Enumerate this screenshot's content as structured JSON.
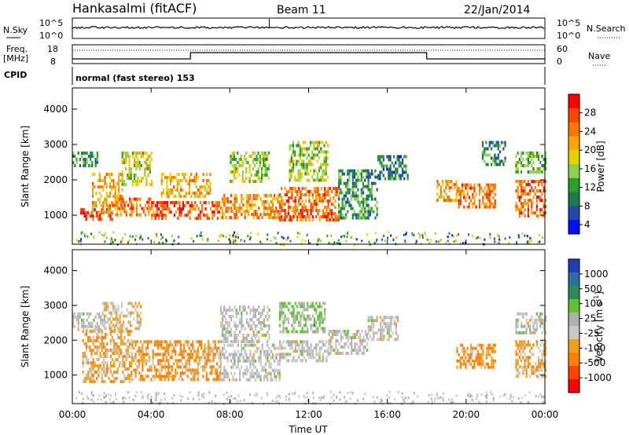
{
  "header": {
    "station": "Hankasalmi (fitACF)",
    "beam": "Beam 11",
    "date": "22/Jan/2014"
  },
  "nsky_panel": {
    "left_label": "N.Sky",
    "right_label": "N.Search",
    "left_ticks": [
      "10^5",
      "10^0"
    ],
    "right_ticks": [
      "10^5",
      "10^0"
    ]
  },
  "freq_panel": {
    "left_label_top": "Freq.",
    "left_label_bottom": "[MHz]",
    "left_ticks": [
      "18",
      "8"
    ],
    "right_ticks": [
      "60",
      "0"
    ],
    "right_label": "Nave"
  },
  "cpid_panel": {
    "label": "CPID",
    "text": "normal (fast stereo) 153"
  },
  "power_panel": {
    "ylabel": "Slant Range [km]",
    "yticks": [
      "4000",
      "3000",
      "2000",
      "1000"
    ],
    "colorbar_label": "Power [dB]",
    "colorbar_ticks": [
      "28",
      "24",
      "20",
      "16",
      "12",
      "8",
      "4"
    ],
    "colorbar_colors": [
      "#ff0000",
      "#ff4400",
      "#ff7700",
      "#ffa500",
      "#e8d000",
      "#8fd14f",
      "#2ca02c",
      "#1f7a4a",
      "#1f4aa8",
      "#0010ff"
    ]
  },
  "velocity_panel": {
    "ylabel": "Slant Range [km]",
    "yticks": [
      "4000",
      "3000",
      "2000",
      "1000"
    ],
    "colorbar_label": "Velocity [m s",
    "colorbar_label_sup": "-1",
    "colorbar_label_end": "]",
    "colorbar_ticks": [
      "1000",
      "500",
      "100",
      "25",
      "-25",
      "-100",
      "-500",
      "-1000"
    ],
    "colorbar_colors": [
      "#1f3fb0",
      "#2e6fa0",
      "#2e8b57",
      "#5fc22f",
      "#b0b0b0",
      "#c8c8c8",
      "#f0a020",
      "#ff7f00",
      "#ff4400",
      "#ff0000"
    ]
  },
  "xaxis": {
    "xlabel": "Time UT",
    "ticks": [
      "00:00",
      "04:00",
      "08:00",
      "12:00",
      "16:00",
      "20:00",
      "00:00"
    ]
  },
  "chart_data": {
    "type": "heatmap",
    "x_range_hours": [
      0,
      24
    ],
    "y_range_km": [
      180,
      4600
    ],
    "power_scale_dB": [
      0,
      30
    ],
    "velocity_scale_ms": [
      -1000,
      1000
    ],
    "power_regions": [
      {
        "t0": 0.0,
        "t1": 1.3,
        "r0": 2400,
        "r1": 2800,
        "level": 8
      },
      {
        "t0": 0.4,
        "t1": 2.0,
        "r0": 850,
        "r1": 1200,
        "level": 28
      },
      {
        "t0": 1.0,
        "t1": 2.5,
        "r0": 1100,
        "r1": 2200,
        "level": 20
      },
      {
        "t0": 2.0,
        "t1": 4.0,
        "r0": 1000,
        "r1": 1500,
        "level": 24
      },
      {
        "t0": 2.5,
        "t1": 4.0,
        "r0": 1900,
        "r1": 2800,
        "level": 16
      },
      {
        "t0": 4.0,
        "t1": 7.5,
        "r0": 900,
        "r1": 1400,
        "level": 26
      },
      {
        "t0": 4.5,
        "t1": 7.0,
        "r0": 1500,
        "r1": 2200,
        "level": 20
      },
      {
        "t0": 7.5,
        "t1": 10.5,
        "r0": 900,
        "r1": 1600,
        "level": 22
      },
      {
        "t0": 8.0,
        "t1": 10.0,
        "r0": 2000,
        "r1": 2800,
        "level": 14
      },
      {
        "t0": 10.5,
        "t1": 13.5,
        "r0": 900,
        "r1": 1800,
        "level": 24
      },
      {
        "t0": 11.0,
        "t1": 13.0,
        "r0": 2000,
        "r1": 3100,
        "level": 14
      },
      {
        "t0": 13.5,
        "t1": 15.5,
        "r0": 900,
        "r1": 2300,
        "level": 8
      },
      {
        "t0": 15.5,
        "t1": 17.0,
        "r0": 2000,
        "r1": 2700,
        "level": 6
      },
      {
        "t0": 18.5,
        "t1": 19.5,
        "r0": 1400,
        "r1": 2000,
        "level": 20
      },
      {
        "t0": 19.5,
        "t1": 21.5,
        "r0": 1200,
        "r1": 1900,
        "level": 24
      },
      {
        "t0": 20.8,
        "t1": 22.0,
        "r0": 2400,
        "r1": 3100,
        "level": 8
      },
      {
        "t0": 22.5,
        "t1": 24.0,
        "r0": 1000,
        "r1": 2000,
        "level": 24
      },
      {
        "t0": 22.5,
        "t1": 24.0,
        "r0": 2200,
        "r1": 2800,
        "level": 12
      }
    ],
    "velocity_regions": [
      {
        "t0": 0.0,
        "t1": 1.5,
        "r0": 2300,
        "r1": 2800,
        "v": 0
      },
      {
        "t0": 0.5,
        "t1": 3.0,
        "r0": 850,
        "r1": 2300,
        "v": -300
      },
      {
        "t0": 1.5,
        "t1": 3.5,
        "r0": 2300,
        "r1": 3100,
        "v": -200
      },
      {
        "t0": 3.0,
        "t1": 7.5,
        "r0": 900,
        "r1": 2000,
        "v": -400
      },
      {
        "t0": 7.5,
        "t1": 10.5,
        "r0": 900,
        "r1": 1900,
        "v": 0
      },
      {
        "t0": 7.5,
        "t1": 10.0,
        "r0": 2000,
        "r1": 3000,
        "v": 0
      },
      {
        "t0": 10.5,
        "t1": 13.0,
        "r0": 1400,
        "r1": 2000,
        "v": 0
      },
      {
        "t0": 10.5,
        "t1": 12.8,
        "r0": 2200,
        "r1": 3100,
        "v": 200
      },
      {
        "t0": 13.0,
        "t1": 15.0,
        "r0": 1600,
        "r1": 2300,
        "v": 0
      },
      {
        "t0": 15.0,
        "t1": 16.5,
        "r0": 2000,
        "r1": 2700,
        "v": 0
      },
      {
        "t0": 19.5,
        "t1": 21.5,
        "r0": 1200,
        "r1": 1900,
        "v": -400
      },
      {
        "t0": 22.5,
        "t1": 24.0,
        "r0": 1000,
        "r1": 2000,
        "v": -300
      },
      {
        "t0": 22.5,
        "t1": 24.0,
        "r0": 2200,
        "r1": 2800,
        "v": 0
      }
    ]
  }
}
